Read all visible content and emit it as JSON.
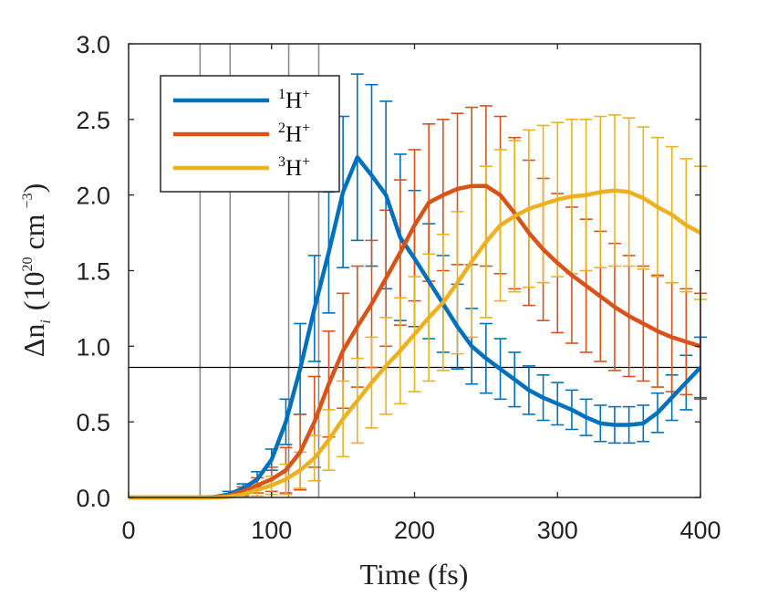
{
  "chart_data": {
    "type": "line",
    "xlabel": "Time (fs)",
    "ylabel": {
      "symbol": "Δn",
      "subscript": "i",
      "open": "(10",
      "exp": "20",
      "unit": "cm",
      "unit_exp": "−3",
      "close": ")"
    },
    "xlim": [
      0,
      400
    ],
    "ylim": [
      0,
      3
    ],
    "x_ticks": [
      0,
      100,
      200,
      300,
      400
    ],
    "x_tick_labels": [
      "0",
      "100",
      "200",
      "300",
      "400"
    ],
    "y_ticks": [
      0,
      0.5,
      1,
      1.5,
      2,
      2.5,
      3
    ],
    "y_tick_labels": [
      "0.0",
      "0.5",
      "1.0",
      "1.5",
      "2.0",
      "2.5",
      "3.0"
    ],
    "vertical_lines": [
      50,
      71,
      112,
      133
    ],
    "horizontal_line": 0.86,
    "legend_position": "top-left",
    "x": [
      0,
      10,
      20,
      30,
      40,
      50,
      60,
      70,
      80,
      90,
      100,
      110,
      120,
      130,
      140,
      150,
      160,
      170,
      180,
      190,
      200,
      210,
      220,
      230,
      240,
      250,
      260,
      270,
      280,
      290,
      300,
      310,
      320,
      330,
      340,
      350,
      360,
      370,
      380,
      390,
      400
    ],
    "series": [
      {
        "name": "1H+",
        "legend": {
          "pre": "1",
          "base": "H",
          "post": "+"
        },
        "color": "#0072BD",
        "errorbar_start": 70,
        "values": [
          0,
          0,
          0,
          0,
          0,
          0,
          0.003,
          0.02,
          0.06,
          0.12,
          0.25,
          0.5,
          0.85,
          1.25,
          1.62,
          2.02,
          2.25,
          2.13,
          2.0,
          1.72,
          1.58,
          1.43,
          1.28,
          1.13,
          1.0,
          0.92,
          0.85,
          0.78,
          0.71,
          0.66,
          0.62,
          0.58,
          0.53,
          0.49,
          0.48,
          0.48,
          0.49,
          0.56,
          0.66,
          0.76,
          0.86
        ],
        "errors": [
          0,
          0,
          0,
          0,
          0,
          0,
          0.02,
          0.02,
          0.03,
          0.05,
          0.07,
          0.15,
          0.3,
          0.35,
          0.4,
          0.5,
          0.55,
          0.6,
          0.62,
          0.55,
          0.45,
          0.38,
          0.32,
          0.28,
          0.25,
          0.23,
          0.2,
          0.18,
          0.16,
          0.15,
          0.14,
          0.13,
          0.12,
          0.12,
          0.12,
          0.12,
          0.12,
          0.13,
          0.15,
          0.18,
          0.2
        ]
      },
      {
        "name": "2H+",
        "legend": {
          "pre": "2",
          "base": "H",
          "post": "+"
        },
        "color": "#D95319",
        "errorbar_start": 80,
        "values": [
          0,
          0,
          0,
          0,
          0,
          0,
          0.002,
          0.01,
          0.04,
          0.08,
          0.12,
          0.18,
          0.3,
          0.5,
          0.75,
          0.97,
          1.13,
          1.28,
          1.45,
          1.62,
          1.8,
          1.95,
          2.0,
          2.04,
          2.06,
          2.06,
          2.0,
          1.88,
          1.75,
          1.64,
          1.55,
          1.47,
          1.4,
          1.33,
          1.26,
          1.2,
          1.15,
          1.1,
          1.06,
          1.03,
          1.0
        ],
        "errors": [
          0,
          0,
          0,
          0,
          0,
          0,
          0.01,
          0.01,
          0.03,
          0.05,
          0.08,
          0.15,
          0.25,
          0.3,
          0.35,
          0.38,
          0.4,
          0.42,
          0.45,
          0.48,
          0.5,
          0.52,
          0.5,
          0.5,
          0.52,
          0.53,
          0.52,
          0.5,
          0.48,
          0.47,
          0.46,
          0.45,
          0.44,
          0.43,
          0.42,
          0.4,
          0.38,
          0.37,
          0.36,
          0.35,
          0.35
        ]
      },
      {
        "name": "3H+",
        "legend": {
          "pre": "3",
          "base": "H",
          "post": "+"
        },
        "color": "#EDB120",
        "errorbar_start": 90,
        "values": [
          0,
          0,
          0,
          0,
          0,
          0,
          0,
          0.005,
          0.02,
          0.05,
          0.08,
          0.12,
          0.18,
          0.26,
          0.38,
          0.52,
          0.64,
          0.76,
          0.87,
          0.97,
          1.08,
          1.19,
          1.29,
          1.42,
          1.56,
          1.69,
          1.8,
          1.86,
          1.91,
          1.94,
          1.97,
          1.99,
          2.0,
          2.02,
          2.03,
          2.02,
          1.98,
          1.92,
          1.87,
          1.8,
          1.75
        ],
        "errors": [
          0,
          0,
          0,
          0,
          0,
          0,
          0,
          0.01,
          0.02,
          0.04,
          0.06,
          0.1,
          0.12,
          0.15,
          0.2,
          0.25,
          0.28,
          0.3,
          0.32,
          0.35,
          0.38,
          0.42,
          0.45,
          0.47,
          0.5,
          0.5,
          0.5,
          0.5,
          0.52,
          0.52,
          0.51,
          0.51,
          0.5,
          0.5,
          0.5,
          0.49,
          0.47,
          0.46,
          0.45,
          0.44,
          0.44
        ]
      }
    ]
  }
}
